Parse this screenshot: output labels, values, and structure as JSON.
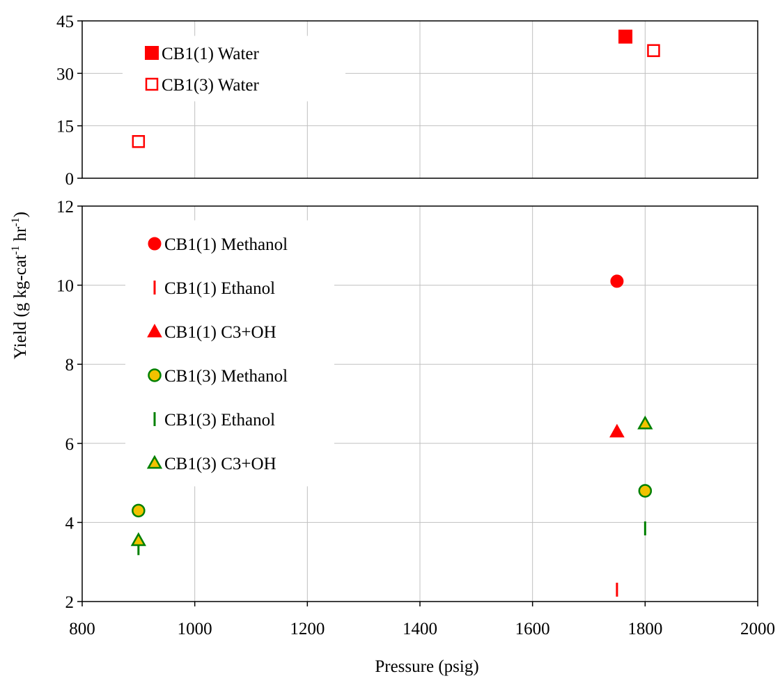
{
  "chart_data": [
    {
      "type": "scatter",
      "panel": "top",
      "xlim": [
        800,
        2000
      ],
      "ylim": [
        0,
        45
      ],
      "yticks": [
        0,
        15,
        30,
        45
      ],
      "grid": true,
      "legend_position": "top-left",
      "series": [
        {
          "name": "CB1(1) Water",
          "marker": "square-filled",
          "color": "#ff0000",
          "points": [
            [
              1765,
              40.5
            ]
          ]
        },
        {
          "name": "CB1(3) Water",
          "marker": "square-open",
          "color": "#ff0000",
          "points": [
            [
              900,
              10.5
            ],
            [
              1815,
              36.5
            ]
          ]
        }
      ]
    },
    {
      "type": "scatter",
      "panel": "bottom",
      "xlim": [
        800,
        2000
      ],
      "ylim": [
        2,
        12
      ],
      "xticks": [
        800,
        1000,
        1200,
        1400,
        1600,
        1800,
        2000
      ],
      "yticks": [
        2,
        4,
        6,
        8,
        10,
        12
      ],
      "xlabel": "Pressure (psig)",
      "grid": true,
      "legend_position": "top-left",
      "series": [
        {
          "name": "CB1(1) Methanol",
          "marker": "circle-filled",
          "color": "#ff0000",
          "points": [
            [
              1750,
              10.1
            ]
          ]
        },
        {
          "name": "CB1(1) Ethanol",
          "marker": "dash",
          "color": "#ff0000",
          "points": [
            [
              1750,
              2.3
            ]
          ]
        },
        {
          "name": "CB1(1) C3+OH",
          "marker": "triangle-filled",
          "color": "#ff0000",
          "points": [
            [
              1750,
              6.3
            ]
          ]
        },
        {
          "name": "CB1(3) Methanol",
          "marker": "circle-gold",
          "color": "#008000",
          "fill": "#f2c200",
          "points": [
            [
              900,
              4.3
            ],
            [
              1800,
              4.8
            ]
          ]
        },
        {
          "name": "CB1(3) Ethanol",
          "marker": "dash",
          "color": "#008000",
          "points": [
            [
              900,
              3.35
            ],
            [
              1800,
              3.85
            ]
          ]
        },
        {
          "name": "CB1(3) C3+OH",
          "marker": "triangle-gold",
          "color": "#008000",
          "fill": "#f2c200",
          "points": [
            [
              900,
              3.55
            ],
            [
              1800,
              6.5
            ]
          ]
        }
      ]
    }
  ],
  "ylabel_main": "Yield (g kg-cat",
  "ylabel_sup": "-1",
  "ylabel_mid": " hr",
  "ylabel_end": ")"
}
